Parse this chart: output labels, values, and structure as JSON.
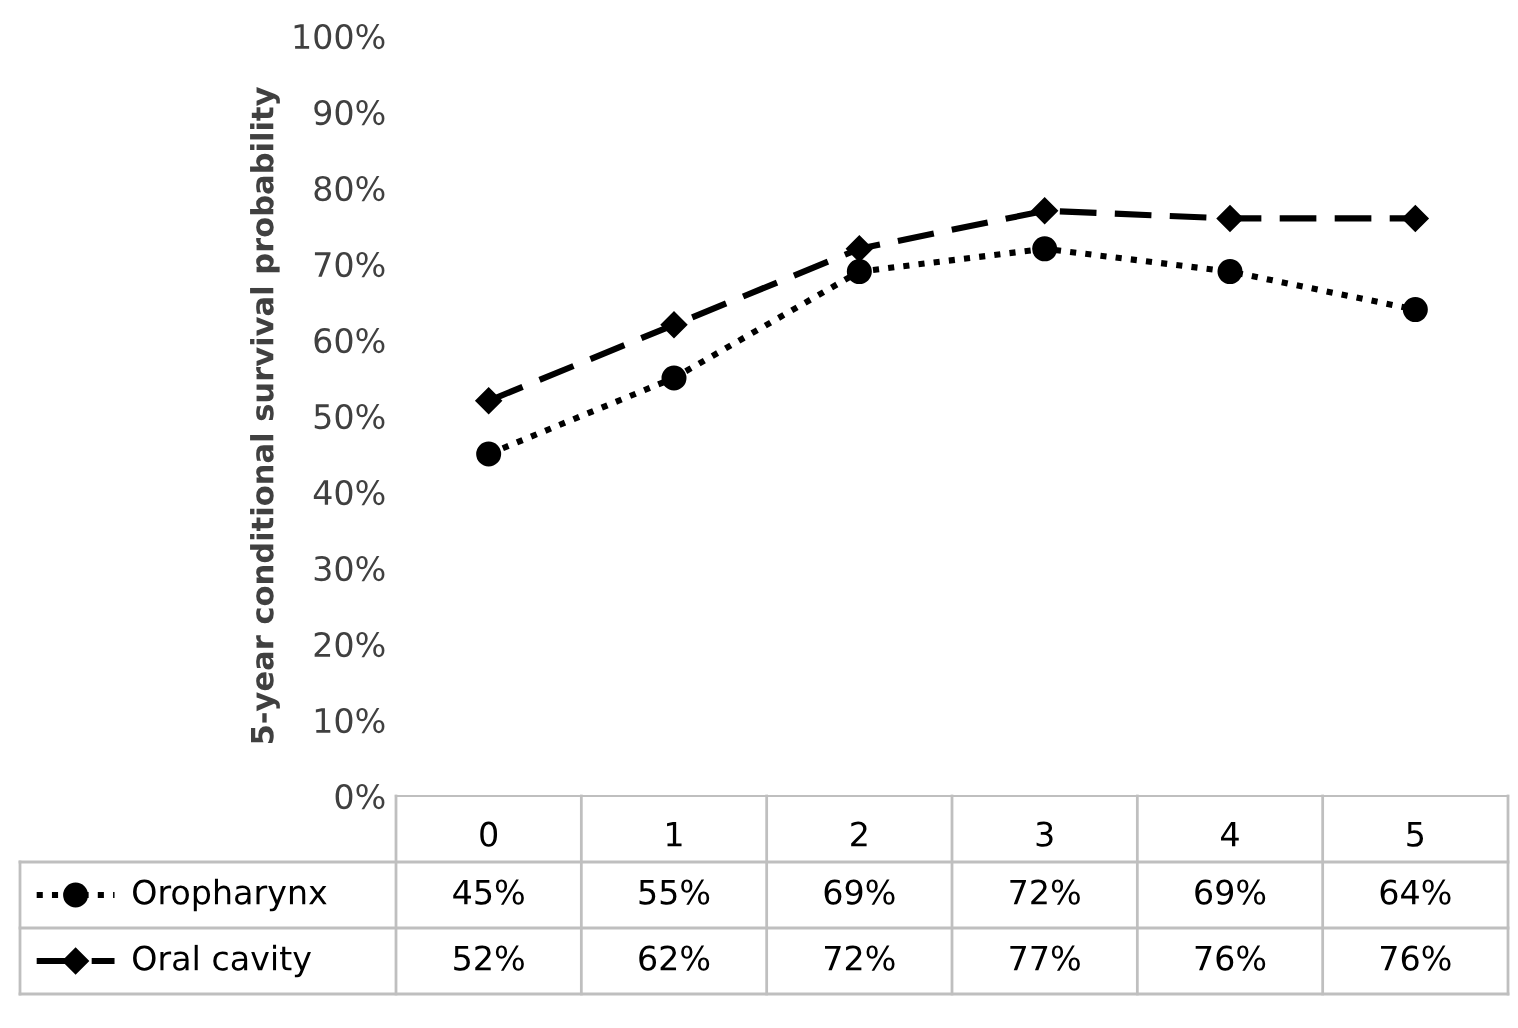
{
  "chart_data": {
    "type": "line",
    "ylabel": "5-year conditional survival probability",
    "categories": [
      "0",
      "1",
      "2",
      "3",
      "4",
      "5"
    ],
    "series": [
      {
        "name": "Oropharynx",
        "color": "#000000",
        "marker": "circle",
        "line_style": "dotted",
        "values": [
          45,
          55,
          69,
          72,
          69,
          64
        ],
        "value_labels": [
          "45%",
          "55%",
          "69%",
          "72%",
          "69%",
          "64%"
        ]
      },
      {
        "name": "Oral cavity",
        "color": "#000000",
        "marker": "diamond",
        "line_style": "dashed",
        "values": [
          52,
          62,
          72,
          77,
          76,
          76
        ],
        "value_labels": [
          "52%",
          "62%",
          "72%",
          "77%",
          "76%",
          "76%"
        ]
      }
    ],
    "ylim": [
      0,
      100
    ],
    "yticks": [
      {
        "value": 0,
        "label": "0%"
      },
      {
        "value": 10,
        "label": "10%"
      },
      {
        "value": 20,
        "label": "20%"
      },
      {
        "value": 30,
        "label": "30%"
      },
      {
        "value": 40,
        "label": "40%"
      },
      {
        "value": 50,
        "label": "50%"
      },
      {
        "value": 60,
        "label": "60%"
      },
      {
        "value": 70,
        "label": "70%"
      },
      {
        "value": 80,
        "label": "80%"
      },
      {
        "value": 90,
        "label": "90%"
      },
      {
        "value": 100,
        "label": "100%"
      }
    ],
    "grid": false,
    "legend": "bottom"
  }
}
